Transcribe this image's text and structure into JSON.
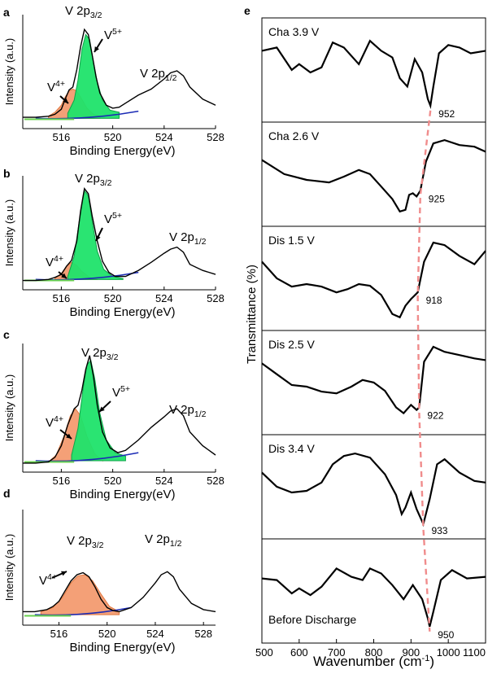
{
  "xps_panels": [
    {
      "panel_label": "a",
      "ylabel": "Intensity (a.u.)",
      "xlabel": "Binding Energy(eV)",
      "xticks": [
        "516",
        "520",
        "524",
        "528"
      ],
      "peak_main": {
        "base": "V 2p",
        "sub": "3/2"
      },
      "peak_secondary": {
        "base": "V 2p",
        "sub": "1/2"
      },
      "v4_label": {
        "base": "V",
        "sup": "4+"
      },
      "v5_label": {
        "base": "V",
        "sup": "5+"
      }
    },
    {
      "panel_label": "b",
      "ylabel": "Intensity (a.u.)",
      "xlabel": "Binding Energy(eV)",
      "xticks": [
        "516",
        "520",
        "524",
        "528"
      ],
      "peak_main": {
        "base": "V 2p",
        "sub": "3/2"
      },
      "peak_secondary": {
        "base": "V 2p",
        "sub": "1/2"
      },
      "v4_label": {
        "base": "V",
        "sup": "4+"
      },
      "v5_label": {
        "base": "V",
        "sup": "5+"
      }
    },
    {
      "panel_label": "c",
      "ylabel": "Intensity (a.u.)",
      "xlabel": "Binding Energy(eV)",
      "xticks": [
        "516",
        "520",
        "524",
        "528"
      ],
      "peak_main": {
        "base": "V 2p",
        "sub": "3/2"
      },
      "peak_secondary": {
        "base": "V 2p",
        "sub": "1/2"
      },
      "v4_label": {
        "base": "V",
        "sup": "4+"
      },
      "v5_label": {
        "base": "V",
        "sup": "5+"
      }
    },
    {
      "panel_label": "d",
      "ylabel": "Intensity (a.u.)",
      "xlabel": "Binding Energy(eV)",
      "xticks": [
        "516",
        "520",
        "524",
        "528"
      ],
      "peak_main": {
        "base": "V 2p",
        "sub": "3/2"
      },
      "peak_secondary": {
        "base": "V 2p",
        "sub": "1/2"
      },
      "v4_label": {
        "base": "V",
        "sup": "4+"
      },
      "v5_label": null
    }
  ],
  "ir_panel": {
    "panel_label": "e",
    "ylabel": "Transmittance (%)",
    "xlabel": "Wavenumber (cm",
    "xlabel_sup": "-1",
    "xlabel_tail": ")",
    "xticks": [
      "500",
      "600",
      "700",
      "800",
      "900",
      "1000",
      "1100"
    ],
    "trend_line_color": "#f08c8c"
  },
  "chart_data": [
    {
      "type": "line",
      "panel": "a",
      "xlim": [
        513,
        528
      ],
      "ylim": [
        0,
        1
      ],
      "series": [
        {
          "name": "",
          "x": [
            513,
            514,
            515,
            515.5,
            516,
            516.3,
            516.6,
            516.9,
            517.2,
            517.5,
            517.8,
            518.1,
            518.4,
            518.7,
            519,
            519.5,
            520,
            520.5,
            521,
            522,
            523,
            524,
            524.5,
            525,
            525.5,
            526,
            527,
            528
          ],
          "y": [
            0.08,
            0.08,
            0.09,
            0.11,
            0.16,
            0.26,
            0.35,
            0.38,
            0.55,
            0.78,
            0.95,
            0.9,
            0.7,
            0.48,
            0.32,
            0.2,
            0.17,
            0.18,
            0.22,
            0.3,
            0.36,
            0.46,
            0.52,
            0.54,
            0.49,
            0.38,
            0.26,
            0.2
          ]
        },
        {
          "name": "V4+",
          "x": [
            515,
            515.5,
            516,
            516.3,
            516.6,
            516.9,
            517.2,
            517.5,
            518,
            518.5,
            519
          ],
          "y": [
            0.09,
            0.13,
            0.2,
            0.28,
            0.34,
            0.36,
            0.34,
            0.28,
            0.17,
            0.11,
            0.09
          ]
        },
        {
          "name": "V5+",
          "x": [
            516.5,
            517,
            517.3,
            517.6,
            517.9,
            518.2,
            518.5,
            518.8,
            519.2,
            519.8,
            520.5
          ],
          "y": [
            0.12,
            0.25,
            0.45,
            0.75,
            0.9,
            0.85,
            0.63,
            0.43,
            0.25,
            0.15,
            0.13
          ]
        }
      ]
    },
    {
      "type": "line",
      "panel": "b",
      "xlim": [
        513,
        528
      ],
      "ylim": [
        0,
        1
      ],
      "series": [
        {
          "name": "",
          "x": [
            513,
            514,
            515,
            515.5,
            516,
            516.4,
            516.8,
            517.2,
            517.5,
            517.8,
            518.1,
            518.4,
            518.8,
            519.2,
            519.7,
            520.2,
            521,
            522,
            523,
            524,
            524.5,
            525,
            525.5,
            526,
            527,
            528
          ],
          "y": [
            0.06,
            0.06,
            0.07,
            0.09,
            0.12,
            0.2,
            0.26,
            0.45,
            0.75,
            0.97,
            0.92,
            0.7,
            0.45,
            0.25,
            0.14,
            0.1,
            0.1,
            0.16,
            0.24,
            0.33,
            0.37,
            0.39,
            0.34,
            0.22,
            0.16,
            0.12
          ]
        },
        {
          "name": "V4+",
          "x": [
            515.5,
            516,
            516.4,
            516.8,
            517.2,
            517.6,
            518.2,
            518.8
          ],
          "y": [
            0.08,
            0.13,
            0.2,
            0.24,
            0.21,
            0.15,
            0.09,
            0.07
          ]
        },
        {
          "name": "V5+",
          "x": [
            516.5,
            517,
            517.4,
            517.8,
            518.1,
            518.4,
            518.8,
            519.3,
            520,
            520.8
          ],
          "y": [
            0.1,
            0.3,
            0.65,
            0.95,
            0.9,
            0.65,
            0.35,
            0.17,
            0.1,
            0.08
          ]
        }
      ]
    },
    {
      "type": "line",
      "panel": "c",
      "xlim": [
        513,
        528
      ],
      "ylim": [
        0,
        1
      ],
      "series": [
        {
          "name": "",
          "x": [
            513,
            514,
            515,
            515.5,
            516,
            516.5,
            517,
            517.3,
            517.6,
            517.9,
            518.2,
            518.5,
            518.8,
            519.2,
            519.8,
            520.4,
            521,
            522,
            523,
            524,
            524.5,
            525,
            525.5,
            526,
            527,
            528
          ],
          "y": [
            0.05,
            0.05,
            0.06,
            0.1,
            0.2,
            0.38,
            0.52,
            0.55,
            0.68,
            0.86,
            0.98,
            0.8,
            0.55,
            0.32,
            0.18,
            0.14,
            0.16,
            0.25,
            0.36,
            0.45,
            0.5,
            0.52,
            0.46,
            0.32,
            0.2,
            0.12
          ]
        },
        {
          "name": "V4+",
          "x": [
            515,
            515.6,
            516.2,
            516.7,
            517.1,
            517.5,
            518,
            518.6,
            519.2
          ],
          "y": [
            0.06,
            0.12,
            0.28,
            0.46,
            0.52,
            0.46,
            0.28,
            0.13,
            0.07
          ]
        },
        {
          "name": "V5+",
          "x": [
            516.8,
            517.3,
            517.7,
            518,
            518.3,
            518.6,
            519,
            519.5,
            520.2,
            521
          ],
          "y": [
            0.12,
            0.35,
            0.7,
            0.9,
            0.94,
            0.78,
            0.48,
            0.25,
            0.14,
            0.11
          ]
        }
      ]
    },
    {
      "type": "line",
      "panel": "d",
      "xlim": [
        513,
        529
      ],
      "ylim": [
        0,
        1
      ],
      "series": [
        {
          "name": "",
          "x": [
            513,
            514,
            515,
            515.5,
            516,
            516.5,
            517,
            517.5,
            518,
            518.5,
            519,
            519.5,
            520,
            520.5,
            521,
            522,
            523,
            524,
            524.5,
            525,
            525.5,
            526,
            527,
            528,
            529
          ],
          "y": [
            0.1,
            0.1,
            0.12,
            0.15,
            0.2,
            0.3,
            0.4,
            0.46,
            0.48,
            0.44,
            0.34,
            0.22,
            0.14,
            0.11,
            0.1,
            0.14,
            0.24,
            0.38,
            0.46,
            0.49,
            0.44,
            0.32,
            0.18,
            0.12,
            0.1
          ]
        },
        {
          "name": "V4+",
          "x": [
            514.5,
            515.5,
            516.3,
            517,
            517.6,
            518.2,
            518.8,
            519.5,
            520.2,
            521
          ],
          "y": [
            0.1,
            0.14,
            0.24,
            0.38,
            0.45,
            0.46,
            0.4,
            0.27,
            0.15,
            0.1
          ]
        }
      ]
    },
    {
      "type": "line",
      "panel": "e",
      "xlabel": "Wavenumber (cm-1)",
      "ylabel": "Transmittance (%)",
      "xlim": [
        500,
        1100
      ],
      "stack_order_top_to_bottom": [
        "Cha 3.9 V",
        "Cha 2.6 V",
        "Dis 1.5 V",
        "Dis 2.5 V",
        "Dis 3.4 V",
        "Before Discharge"
      ],
      "series": [
        {
          "name": "Cha 3.9 V",
          "peak_label": "952",
          "peak_x": 952,
          "x": [
            500,
            540,
            580,
            600,
            630,
            660,
            690,
            720,
            760,
            790,
            820,
            850,
            870,
            890,
            910,
            930,
            945,
            952,
            960,
            975,
            1000,
            1030,
            1060,
            1100
          ],
          "y": [
            0.78,
            0.82,
            0.55,
            0.62,
            0.52,
            0.58,
            0.88,
            0.82,
            0.62,
            0.9,
            0.78,
            0.7,
            0.45,
            0.35,
            0.68,
            0.52,
            0.2,
            0.12,
            0.35,
            0.75,
            0.85,
            0.82,
            0.75,
            0.78
          ]
        },
        {
          "name": "Cha 2.6 V",
          "peak_label": "925",
          "peak_x": 925,
          "x": [
            500,
            560,
            620,
            680,
            720,
            760,
            790,
            820,
            850,
            870,
            885,
            895,
            905,
            915,
            925,
            940,
            960,
            990,
            1030,
            1070,
            1100
          ],
          "y": [
            0.72,
            0.55,
            0.48,
            0.45,
            0.52,
            0.6,
            0.55,
            0.4,
            0.25,
            0.1,
            0.12,
            0.3,
            0.32,
            0.28,
            0.35,
            0.7,
            0.92,
            0.96,
            0.9,
            0.88,
            0.82
          ]
        },
        {
          "name": "Dis 1.5 V",
          "peak_label": "918",
          "peak_x": 918,
          "x": [
            500,
            540,
            580,
            620,
            660,
            700,
            730,
            760,
            790,
            820,
            850,
            870,
            885,
            900,
            918,
            935,
            960,
            990,
            1030,
            1070,
            1100
          ],
          "y": [
            0.75,
            0.55,
            0.45,
            0.48,
            0.45,
            0.38,
            0.42,
            0.48,
            0.46,
            0.35,
            0.12,
            0.08,
            0.22,
            0.3,
            0.38,
            0.75,
            0.98,
            0.95,
            0.82,
            0.72,
            0.88
          ]
        },
        {
          "name": "Dis 2.5 V",
          "peak_label": "922",
          "peak_x": 922,
          "x": [
            500,
            540,
            580,
            620,
            660,
            700,
            740,
            770,
            800,
            830,
            860,
            880,
            900,
            915,
            922,
            935,
            960,
            990,
            1030,
            1070,
            1100
          ],
          "y": [
            0.78,
            0.65,
            0.52,
            0.5,
            0.44,
            0.42,
            0.5,
            0.58,
            0.55,
            0.45,
            0.25,
            0.18,
            0.28,
            0.22,
            0.25,
            0.8,
            0.98,
            0.92,
            0.88,
            0.84,
            0.82
          ]
        },
        {
          "name": "Dis 3.4 V",
          "peak_label": "933",
          "peak_x": 933,
          "x": [
            500,
            540,
            580,
            620,
            660,
            690,
            720,
            750,
            790,
            830,
            860,
            875,
            885,
            900,
            915,
            933,
            950,
            970,
            990,
            1030,
            1070,
            1100
          ],
          "y": [
            0.72,
            0.55,
            0.48,
            0.5,
            0.6,
            0.82,
            0.92,
            0.95,
            0.9,
            0.7,
            0.45,
            0.22,
            0.3,
            0.48,
            0.28,
            0.1,
            0.4,
            0.82,
            0.88,
            0.72,
            0.62,
            0.6
          ]
        },
        {
          "name": "Before Discharge",
          "peak_label": "950",
          "peak_x": 950,
          "x": [
            500,
            540,
            580,
            600,
            630,
            660,
            700,
            740,
            770,
            790,
            820,
            850,
            880,
            905,
            930,
            945,
            950,
            960,
            980,
            1010,
            1050,
            1100
          ],
          "y": [
            0.7,
            0.68,
            0.52,
            0.58,
            0.5,
            0.6,
            0.82,
            0.72,
            0.68,
            0.82,
            0.76,
            0.62,
            0.45,
            0.62,
            0.45,
            0.22,
            0.12,
            0.3,
            0.68,
            0.8,
            0.7,
            0.72
          ]
        }
      ]
    }
  ]
}
